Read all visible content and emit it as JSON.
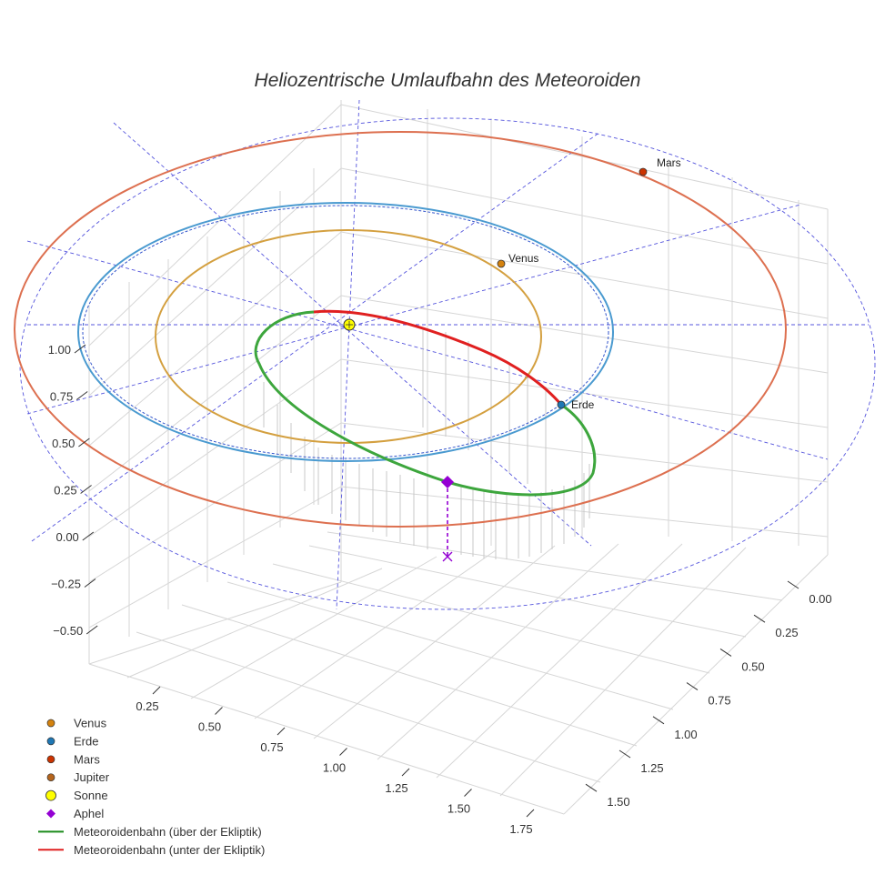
{
  "chart_data": {
    "type": "3d-line",
    "title": "Heliozentrische Umlaufbahn des Meteoroiden",
    "axes": {
      "x": {
        "ticks": [
          0.25,
          0.5,
          0.75,
          1.0,
          1.25,
          1.5,
          1.75
        ],
        "labels": [
          "0.25",
          "0.50",
          "0.75",
          "1.00",
          "1.25",
          "1.50",
          "1.75"
        ]
      },
      "y": {
        "ticks": [
          0.0,
          0.25,
          0.5,
          0.75,
          1.0,
          1.25,
          1.5
        ],
        "labels": [
          "0.00",
          "0.25",
          "0.50",
          "0.75",
          "1.00",
          "1.25",
          "1.50"
        ]
      },
      "z": {
        "ticks": [
          1.0,
          0.75,
          0.5,
          0.25,
          0.0,
          -0.25,
          -0.5
        ],
        "labels": [
          "1.00",
          "0.75",
          "0.50",
          "0.25",
          "0.00",
          "−0.25",
          "−0.50"
        ]
      }
    },
    "bodies": [
      {
        "name": "Venus",
        "semi_major_au": 0.72,
        "color": "#d4a040",
        "marker_color": "#d4820e",
        "angle_deg": 55
      },
      {
        "name": "Erde",
        "semi_major_au": 1.0,
        "color": "#4a9ad0",
        "marker_color": "#1f77b4",
        "angle_deg": -25
      },
      {
        "name": "Mars",
        "semi_major_au": 1.52,
        "color": "#dd7050",
        "marker_color": "#cc3300",
        "angle_deg": 60
      }
    ],
    "meteoroid": {
      "aphelion_label": "Aphel"
    },
    "legend": [
      {
        "label": "Venus",
        "marker": "circle",
        "color": "#d4820e"
      },
      {
        "label": "Erde",
        "marker": "circle",
        "color": "#1f77b4"
      },
      {
        "label": "Mars",
        "marker": "circle",
        "color": "#cc3300"
      },
      {
        "label": "Jupiter",
        "marker": "circle",
        "color": "#b5651d"
      },
      {
        "label": "Sonne",
        "marker": "circle-large",
        "color": "#ffff00"
      },
      {
        "label": "Aphel",
        "marker": "diamond",
        "color": "#9400d3"
      },
      {
        "label": "Meteoroidenbahn (über der Ekliptik)",
        "marker": "line",
        "color": "#1a8a1a"
      },
      {
        "label": "Meteoroidenbahn (unter der Ekliptik)",
        "marker": "line",
        "color": "#e02020"
      }
    ],
    "legend_position": "bottom-left"
  }
}
